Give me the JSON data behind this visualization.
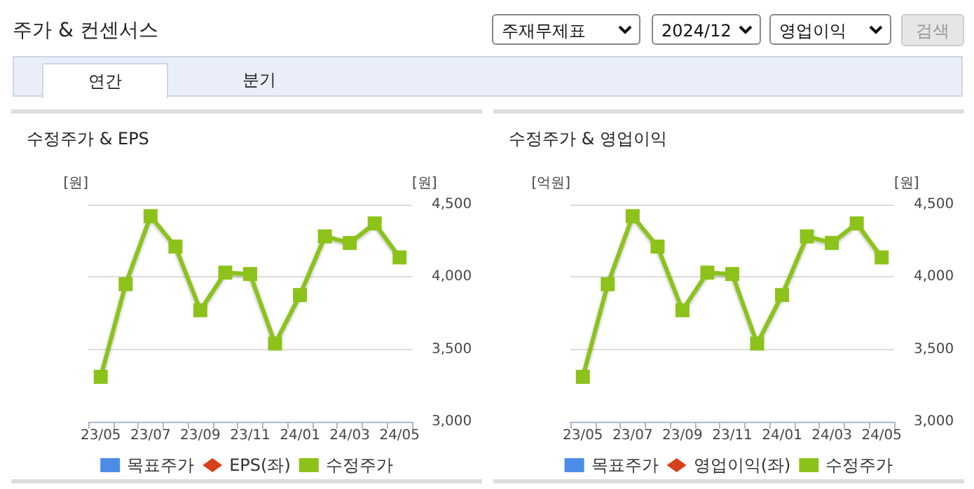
{
  "chart_data": [
    {
      "type": "other",
      "title": "주가 & 컨센서스",
      "annotations": [
        "주재무제표",
        "2024/12",
        "영업이익",
        "검색",
        "연간",
        "분기"
      ]
    },
    {
      "type": "line",
      "title": "수정주가 & EPS",
      "ylabel": "[원]",
      "y2label": "[원]",
      "categories": [
        "23/05",
        null,
        "23/07",
        null,
        "23/09",
        null,
        "23/11",
        null,
        "24/01",
        null,
        "24/03",
        null,
        "24/05"
      ],
      "series": [
        {
          "name": "목표주가",
          "color": "#1f6fe0",
          "type": "scatter",
          "marker": "square",
          "axis": "y2",
          "values": [
            null,
            null,
            null,
            null,
            null,
            null,
            null,
            null,
            null,
            null,
            null,
            null,
            null
          ]
        },
        {
          "name": "EPS(좌)",
          "color": "#d8401a",
          "marker": "diamond",
          "values": [
            null,
            null,
            null,
            null,
            null,
            null,
            null,
            null,
            null,
            null,
            null,
            null,
            null
          ]
        },
        {
          "name": "수정주가",
          "color": "#8cc21a",
          "marker": "square",
          "axis": "y2",
          "values": [
            3310,
            3950,
            4420,
            4210,
            3770,
            4030,
            4020,
            3540,
            3875,
            4280,
            4235,
            4370,
            4135
          ]
        }
      ],
      "y2lim": [
        3000,
        4500
      ],
      "y2ticks": [
        {
          "value": 3000,
          "label": "3,000"
        },
        {
          "value": 3500,
          "label": "3,500"
        },
        {
          "value": 4000,
          "label": "4,000"
        },
        {
          "value": 4500,
          "label": "4,500"
        }
      ],
      "grid": "y",
      "legend": "bottom"
    },
    {
      "type": "line",
      "title": "수정주가 & 영업이익",
      "ylabel": "[억원]",
      "y2label": "[원]",
      "categories": [
        "23/05",
        null,
        "23/07",
        null,
        "23/09",
        null,
        "23/11",
        null,
        "24/01",
        null,
        "24/03",
        null,
        "24/05"
      ],
      "series": [
        {
          "name": "목표주가",
          "color": "#1f6fe0",
          "type": "scatter",
          "marker": "square",
          "axis": "y2",
          "values": [
            null,
            null,
            null,
            null,
            null,
            null,
            null,
            null,
            null,
            null,
            null,
            null,
            null
          ]
        },
        {
          "name": "영업이익(좌)",
          "color": "#d8401a",
          "marker": "diamond",
          "values": [
            null,
            null,
            null,
            null,
            null,
            null,
            null,
            null,
            null,
            null,
            null,
            null,
            null
          ]
        },
        {
          "name": "수정주가",
          "color": "#8cc21a",
          "marker": "square",
          "axis": "y2",
          "values": [
            3310,
            3950,
            4420,
            4210,
            3770,
            4030,
            4020,
            3540,
            3875,
            4280,
            4235,
            4370,
            4135
          ]
        }
      ],
      "y2lim": [
        3000,
        4500
      ],
      "y2ticks": [
        {
          "value": 3000,
          "label": "3,000"
        },
        {
          "value": 3500,
          "label": "3,500"
        },
        {
          "value": 4000,
          "label": "4,000"
        },
        {
          "value": 4500,
          "label": "4,500"
        }
      ],
      "grid": "y",
      "legend": "bottom"
    }
  ]
}
